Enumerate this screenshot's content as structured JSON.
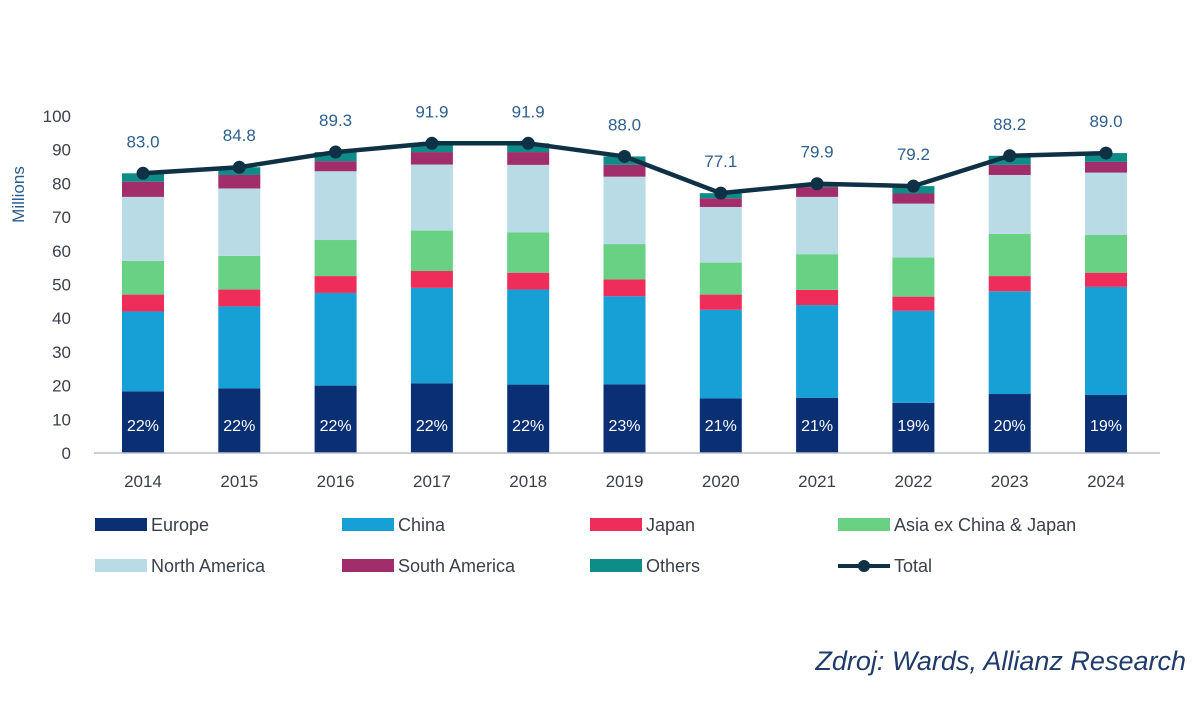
{
  "chart_data": {
    "type": "bar",
    "stacked": true,
    "ylabel": "Millions",
    "ylim": [
      0,
      100
    ],
    "yticks": [
      0,
      10,
      20,
      30,
      40,
      50,
      60,
      70,
      80,
      90,
      100
    ],
    "categories": [
      "2014",
      "2015",
      "2016",
      "2017",
      "2018",
      "2019",
      "2020",
      "2021",
      "2022",
      "2023",
      "2024"
    ],
    "series": [
      {
        "name": "Europe",
        "color": "#0b2f73",
        "values": [
          18.3,
          19.2,
          20.0,
          20.7,
          20.3,
          20.4,
          16.2,
          16.4,
          14.9,
          17.5,
          17.2
        ]
      },
      {
        "name": "China",
        "color": "#16a0d6",
        "values": [
          23.7,
          24.3,
          27.5,
          28.3,
          28.2,
          26.1,
          26.3,
          27.5,
          27.3,
          30.5,
          32.1
        ]
      },
      {
        "name": "Japan",
        "color": "#ef2d5b",
        "values": [
          5.0,
          5.0,
          5.0,
          5.0,
          5.0,
          5.0,
          4.5,
          4.5,
          4.2,
          4.5,
          4.2
        ]
      },
      {
        "name": "Asia ex China & Japan",
        "color": "#69d184",
        "values": [
          10.0,
          10.0,
          10.7,
          12.0,
          12.0,
          10.5,
          9.5,
          10.6,
          11.6,
          12.5,
          11.2
        ]
      },
      {
        "name": "North America",
        "color": "#b8dbe6",
        "values": [
          19.0,
          20.0,
          20.4,
          19.6,
          20.0,
          20.0,
          16.5,
          17.0,
          16.0,
          17.5,
          18.5
        ]
      },
      {
        "name": "South America",
        "color": "#a12e6a",
        "values": [
          4.5,
          4.0,
          3.0,
          3.7,
          3.8,
          3.5,
          2.6,
          2.9,
          3.0,
          3.0,
          3.2
        ]
      },
      {
        "name": "Others",
        "color": "#0e8c88",
        "values": [
          2.5,
          2.3,
          2.7,
          2.6,
          2.6,
          2.5,
          1.5,
          1.0,
          2.2,
          2.7,
          2.6
        ]
      }
    ],
    "total": {
      "name": "Total",
      "color": "#0f3146",
      "values": [
        83.0,
        84.8,
        89.3,
        91.9,
        91.9,
        88.0,
        77.1,
        79.9,
        79.2,
        88.2,
        89.0
      ]
    },
    "total_labels": [
      "83.0",
      "84.8",
      "89.3",
      "91.9",
      "91.9",
      "88.0",
      "77.1",
      "79.9",
      "79.2",
      "88.2",
      "89.0"
    ],
    "europe_share_labels": [
      "22%",
      "22%",
      "22%",
      "22%",
      "22%",
      "23%",
      "21%",
      "21%",
      "19%",
      "20%",
      "19%"
    ],
    "legend": [
      "Europe",
      "China",
      "Japan",
      "Asia ex China & Japan",
      "North America",
      "South America",
      "Others",
      "Total"
    ],
    "legend_position": "bottom"
  },
  "source": "Zdroj: Wards, Allianz Research"
}
